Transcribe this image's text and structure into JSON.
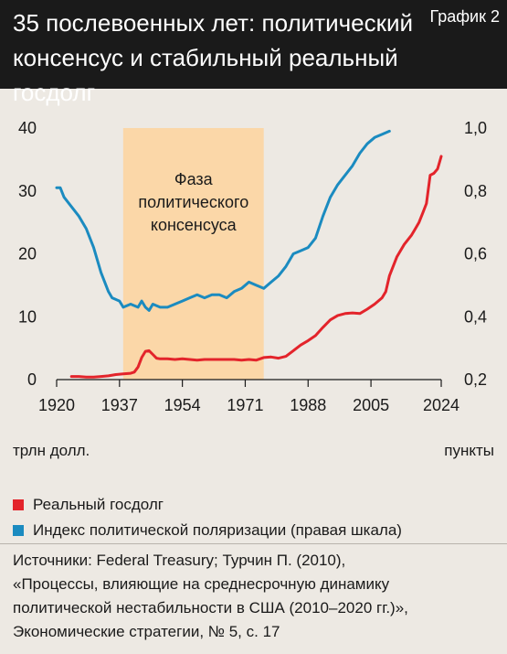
{
  "header": {
    "title_line1": "35 послевоенных лет: политический",
    "title_line2": "консенсус и стабильный реальный госдолг",
    "tag": "График 2"
  },
  "colors": {
    "debt": "#e3242b",
    "polarization": "#1b8bc0",
    "phase": "#fbd7a8",
    "header_bg": "#1a1a1a"
  },
  "chart_data": {
    "type": "line",
    "x_ticks": [
      "1920",
      "1937",
      "1954",
      "1971",
      "1988",
      "2005",
      "2024"
    ],
    "xlim": [
      1920,
      2024
    ],
    "y_left": {
      "ticks": [
        "0",
        "10",
        "20",
        "30",
        "40"
      ],
      "lim": [
        0,
        40
      ],
      "unit_label": "трлн долл."
    },
    "y_right": {
      "ticks": [
        "0,2",
        "0,4",
        "0,6",
        "0,8",
        "1,0"
      ],
      "lim": [
        0.2,
        1.0
      ],
      "unit_label": "пункты"
    },
    "annotation": {
      "text_lines": [
        "Фаза",
        "политического",
        "консенсуса"
      ],
      "x_range": [
        1938,
        1976
      ]
    },
    "series": [
      {
        "name": "Реальный госдолг",
        "axis": "left",
        "points": [
          [
            1924,
            0.5
          ],
          [
            1926,
            0.5
          ],
          [
            1928,
            0.4
          ],
          [
            1930,
            0.4
          ],
          [
            1932,
            0.5
          ],
          [
            1934,
            0.6
          ],
          [
            1936,
            0.8
          ],
          [
            1938,
            0.9
          ],
          [
            1940,
            1.0
          ],
          [
            1941,
            1.2
          ],
          [
            1942,
            2.0
          ],
          [
            1943,
            3.5
          ],
          [
            1944,
            4.5
          ],
          [
            1945,
            4.6
          ],
          [
            1946,
            4.0
          ],
          [
            1947,
            3.4
          ],
          [
            1948,
            3.3
          ],
          [
            1950,
            3.3
          ],
          [
            1952,
            3.2
          ],
          [
            1954,
            3.3
          ],
          [
            1956,
            3.2
          ],
          [
            1958,
            3.1
          ],
          [
            1960,
            3.2
          ],
          [
            1962,
            3.2
          ],
          [
            1964,
            3.2
          ],
          [
            1966,
            3.2
          ],
          [
            1968,
            3.2
          ],
          [
            1970,
            3.1
          ],
          [
            1972,
            3.2
          ],
          [
            1974,
            3.1
          ],
          [
            1976,
            3.5
          ],
          [
            1978,
            3.6
          ],
          [
            1980,
            3.4
          ],
          [
            1982,
            3.7
          ],
          [
            1984,
            4.6
          ],
          [
            1986,
            5.5
          ],
          [
            1988,
            6.2
          ],
          [
            1990,
            7.0
          ],
          [
            1992,
            8.3
          ],
          [
            1994,
            9.5
          ],
          [
            1996,
            10.2
          ],
          [
            1998,
            10.5
          ],
          [
            2000,
            10.6
          ],
          [
            2002,
            10.5
          ],
          [
            2004,
            11.2
          ],
          [
            2006,
            12.0
          ],
          [
            2008,
            13.0
          ],
          [
            2009,
            14.0
          ],
          [
            2010,
            16.5
          ],
          [
            2012,
            19.5
          ],
          [
            2014,
            21.5
          ],
          [
            2016,
            23.0
          ],
          [
            2017,
            24.0
          ],
          [
            2018,
            25.0
          ],
          [
            2019,
            26.5
          ],
          [
            2020,
            28.0
          ],
          [
            2021,
            32.5
          ],
          [
            2022,
            32.8
          ],
          [
            2023,
            33.5
          ],
          [
            2024,
            35.5
          ]
        ]
      },
      {
        "name": "Индекс политической поляризации (правая шкала)",
        "axis": "right",
        "points": [
          [
            1920,
            0.81
          ],
          [
            1921,
            0.81
          ],
          [
            1922,
            0.78
          ],
          [
            1924,
            0.75
          ],
          [
            1926,
            0.72
          ],
          [
            1928,
            0.68
          ],
          [
            1930,
            0.62
          ],
          [
            1932,
            0.54
          ],
          [
            1934,
            0.48
          ],
          [
            1935,
            0.46
          ],
          [
            1937,
            0.45
          ],
          [
            1938,
            0.43
          ],
          [
            1940,
            0.44
          ],
          [
            1942,
            0.43
          ],
          [
            1943,
            0.45
          ],
          [
            1944,
            0.43
          ],
          [
            1945,
            0.42
          ],
          [
            1946,
            0.44
          ],
          [
            1948,
            0.43
          ],
          [
            1950,
            0.43
          ],
          [
            1952,
            0.44
          ],
          [
            1954,
            0.45
          ],
          [
            1956,
            0.46
          ],
          [
            1958,
            0.47
          ],
          [
            1960,
            0.46
          ],
          [
            1962,
            0.47
          ],
          [
            1964,
            0.47
          ],
          [
            1966,
            0.46
          ],
          [
            1968,
            0.48
          ],
          [
            1970,
            0.49
          ],
          [
            1972,
            0.51
          ],
          [
            1974,
            0.5
          ],
          [
            1976,
            0.49
          ],
          [
            1978,
            0.51
          ],
          [
            1980,
            0.53
          ],
          [
            1982,
            0.56
          ],
          [
            1984,
            0.6
          ],
          [
            1986,
            0.61
          ],
          [
            1988,
            0.62
          ],
          [
            1990,
            0.65
          ],
          [
            1992,
            0.72
          ],
          [
            1994,
            0.78
          ],
          [
            1996,
            0.82
          ],
          [
            1998,
            0.85
          ],
          [
            2000,
            0.88
          ],
          [
            2002,
            0.92
          ],
          [
            2004,
            0.95
          ],
          [
            2006,
            0.97
          ],
          [
            2008,
            0.98
          ],
          [
            2010,
            0.99
          ]
        ]
      }
    ]
  },
  "legend": [
    {
      "label": "Реальный госдолг",
      "color": "#e3242b"
    },
    {
      "label": "Индекс политической поляризации (правая шкала)",
      "color": "#1b8bc0"
    }
  ],
  "source": {
    "lines": [
      "Источники: Federal Treasury; Турчин П. (2010),",
      "«Процессы, влияющие на среднесрочную динамику",
      "политической нестабильности в США (2010–2020 гг.)»,",
      "Экономические стратегии, № 5, с. 17"
    ]
  }
}
